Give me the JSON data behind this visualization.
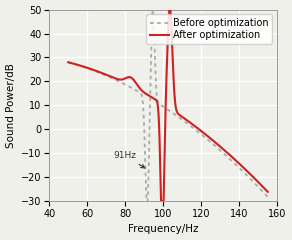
{
  "xlim": [
    40,
    160
  ],
  "ylim": [
    -30,
    50
  ],
  "xlabel": "Frequency/Hz",
  "ylabel": "Sound Power/dB",
  "xticks": [
    40,
    60,
    80,
    100,
    120,
    140,
    160
  ],
  "yticks": [
    -30,
    -20,
    -10,
    0,
    10,
    20,
    30,
    40,
    50
  ],
  "annotation_text": "91Hz",
  "before_color": "#aaaaaa",
  "after_color": "#cc2222",
  "legend_labels": [
    "Before optimization",
    "After optimization"
  ],
  "background_color": "#f0f0eb",
  "grid_color": "#ffffff",
  "axis_fontsize": 7.5,
  "tick_fontsize": 7,
  "legend_fontsize": 7
}
